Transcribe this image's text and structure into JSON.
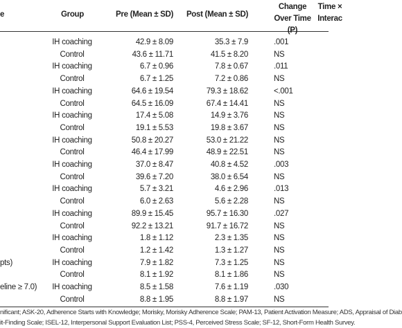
{
  "table": {
    "columns": [
      "e",
      "Group",
      "Pre (Mean ± SD)",
      "Post (Mean ± SD)",
      "Change Over Time (P)",
      "Time × Interac"
    ],
    "rows": [
      {
        "group": "IH coaching",
        "pre": "42.9 ± 8.09",
        "post": "35.3 ± 7.9",
        "p": ".001"
      },
      {
        "group": "Control",
        "pre": "43.6 ± 11.71",
        "post": "41.5 ± 8.20",
        "p": "NS"
      },
      {
        "group": "IH coaching",
        "pre": "6.7 ± 0.96",
        "post": "7.8 ± 0.67",
        "p": ".011"
      },
      {
        "group": "Control",
        "pre": "6.7 ± 1.25",
        "post": "7.2 ± 0.86",
        "p": "NS"
      },
      {
        "group": "IH coaching",
        "pre": "64.6 ± 19.54",
        "post": "79.3 ± 18.62",
        "p": "<.001"
      },
      {
        "group": "Control",
        "pre": "64.5 ± 16.09",
        "post": "67.4 ± 14.41",
        "p": "NS"
      },
      {
        "group": "IH coaching",
        "pre": "17.4 ± 5.08",
        "post": "14.9 ± 3.76",
        "p": "NS"
      },
      {
        "group": "Control",
        "pre": "19.1 ± 5.53",
        "post": "19.8 ± 3.67",
        "p": "NS"
      },
      {
        "group": "IH coaching",
        "pre": "50.8 ± 20.27",
        "post": "53.0 ± 21.22",
        "p": "NS"
      },
      {
        "group": "Control",
        "pre": "46.4 ± 17.99",
        "post": "48.9 ± 22.51",
        "p": "NS"
      },
      {
        "group": "IH coaching",
        "pre": "37.0 ± 8.47",
        "post": "40.8 ± 4.52",
        "p": ".003"
      },
      {
        "group": "Control",
        "pre": "39.6 ± 7.20",
        "post": "38.0 ± 6.54",
        "p": "NS"
      },
      {
        "group": "IH coaching",
        "pre": "5.7 ± 3.21",
        "post": "4.6 ± 2.96",
        "p": ".013"
      },
      {
        "group": "Control",
        "pre": "6.0 ± 2.63",
        "post": "5.6 ± 2.28",
        "p": "NS"
      },
      {
        "group": "IH coaching",
        "pre": "89.9 ± 15.45",
        "post": "95.7 ± 16.30",
        "p": ".027"
      },
      {
        "group": "Control",
        "pre": "92.2 ± 13.21",
        "post": "91.7 ± 16.72",
        "p": "NS"
      },
      {
        "group": "IH coaching",
        "pre": "1.8 ± 1.12",
        "post": "2.3 ± 1.35",
        "p": "NS"
      },
      {
        "group": "Control",
        "pre": "1.2 ± 1.42",
        "post": "1.3 ± 1.27",
        "p": "NS"
      },
      {
        "label": "pts)",
        "group": "IH coaching",
        "pre": "7.9 ± 1.82",
        "post": "7.3 ± 1.25",
        "p": "NS"
      },
      {
        "group": "Control",
        "pre": "8.1 ± 1.92",
        "post": "8.1 ± 1.86",
        "p": "NS"
      },
      {
        "label": "eline ≥ 7.0)",
        "group": "IH coaching",
        "pre": "8.5 ± 1.58",
        "post": "7.6 ± 1.19",
        "p": ".030"
      },
      {
        "group": "Control",
        "pre": "8.8 ± 1.95",
        "post": "8.8 ± 1.97",
        "p": "NS"
      }
    ]
  },
  "footnotes": [
    "nificant; ASK-20, Adherence Starts with Knowledge; Morisky, Morisky Adherence Scale; PAM-13, Patient Activation Measure; ADS, Appraisal of Diab",
    "it-Finding Scale; ISEL-12, Interpersonal Support Evaluation List; PSS-4, Perceived Stress Scale; SF-12, Short-Form Health Survey."
  ]
}
